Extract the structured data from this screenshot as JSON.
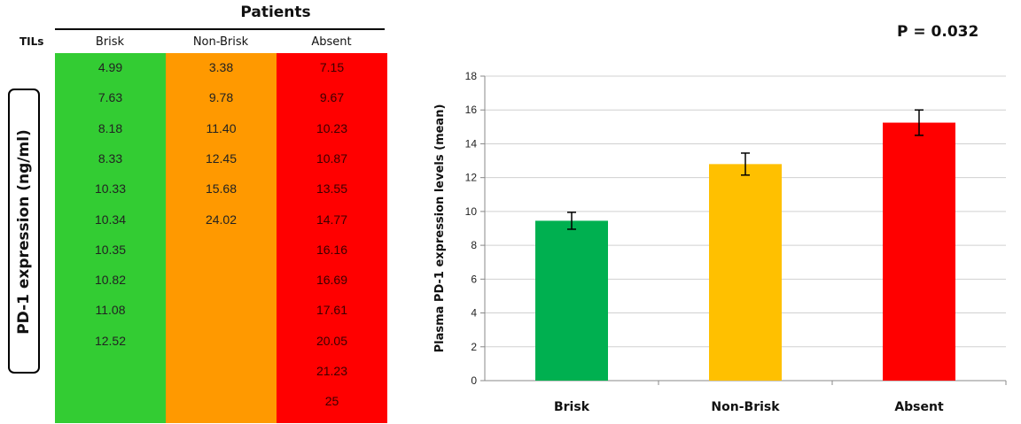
{
  "table": {
    "header": "Patients",
    "row_label": "TILs",
    "side_label": "PD-1 expression (ng/ml)",
    "columns": [
      {
        "name": "Brisk",
        "color": "#33cc33",
        "values": [
          "4.99",
          "7.63",
          "8.18",
          "8.33",
          "10.33",
          "10.34",
          "10.35",
          "10.82",
          "11.08",
          "12.52"
        ]
      },
      {
        "name": "Non-Brisk",
        "color": "#ff9900",
        "values": [
          "3.38",
          "9.78",
          "11.40",
          "12.45",
          "15.68",
          "24.02"
        ]
      },
      {
        "name": "Absent",
        "color": "#ff0000",
        "values": [
          "7.15",
          "9.67",
          "10.23",
          "10.87",
          "13.55",
          "14.77",
          "16.16",
          "16.69",
          "17.61",
          "20.05",
          "21.23",
          "25"
        ]
      }
    ]
  },
  "chart_data": {
    "type": "bar",
    "categories": [
      "Brisk",
      "Non-Brisk",
      "Absent"
    ],
    "values": [
      9.45,
      12.8,
      15.25
    ],
    "error": [
      0.5,
      0.65,
      0.75
    ],
    "colors": [
      "#00b050",
      "#ffc000",
      "#ff0000"
    ],
    "ylabel": "Plasma PD-1 expression levels (mean)",
    "xlabel": "",
    "ylim": [
      0,
      18
    ],
    "yticks": [
      0,
      2,
      4,
      6,
      8,
      10,
      12,
      14,
      16,
      18
    ],
    "grid": true,
    "annotation": "P = 0.032"
  }
}
